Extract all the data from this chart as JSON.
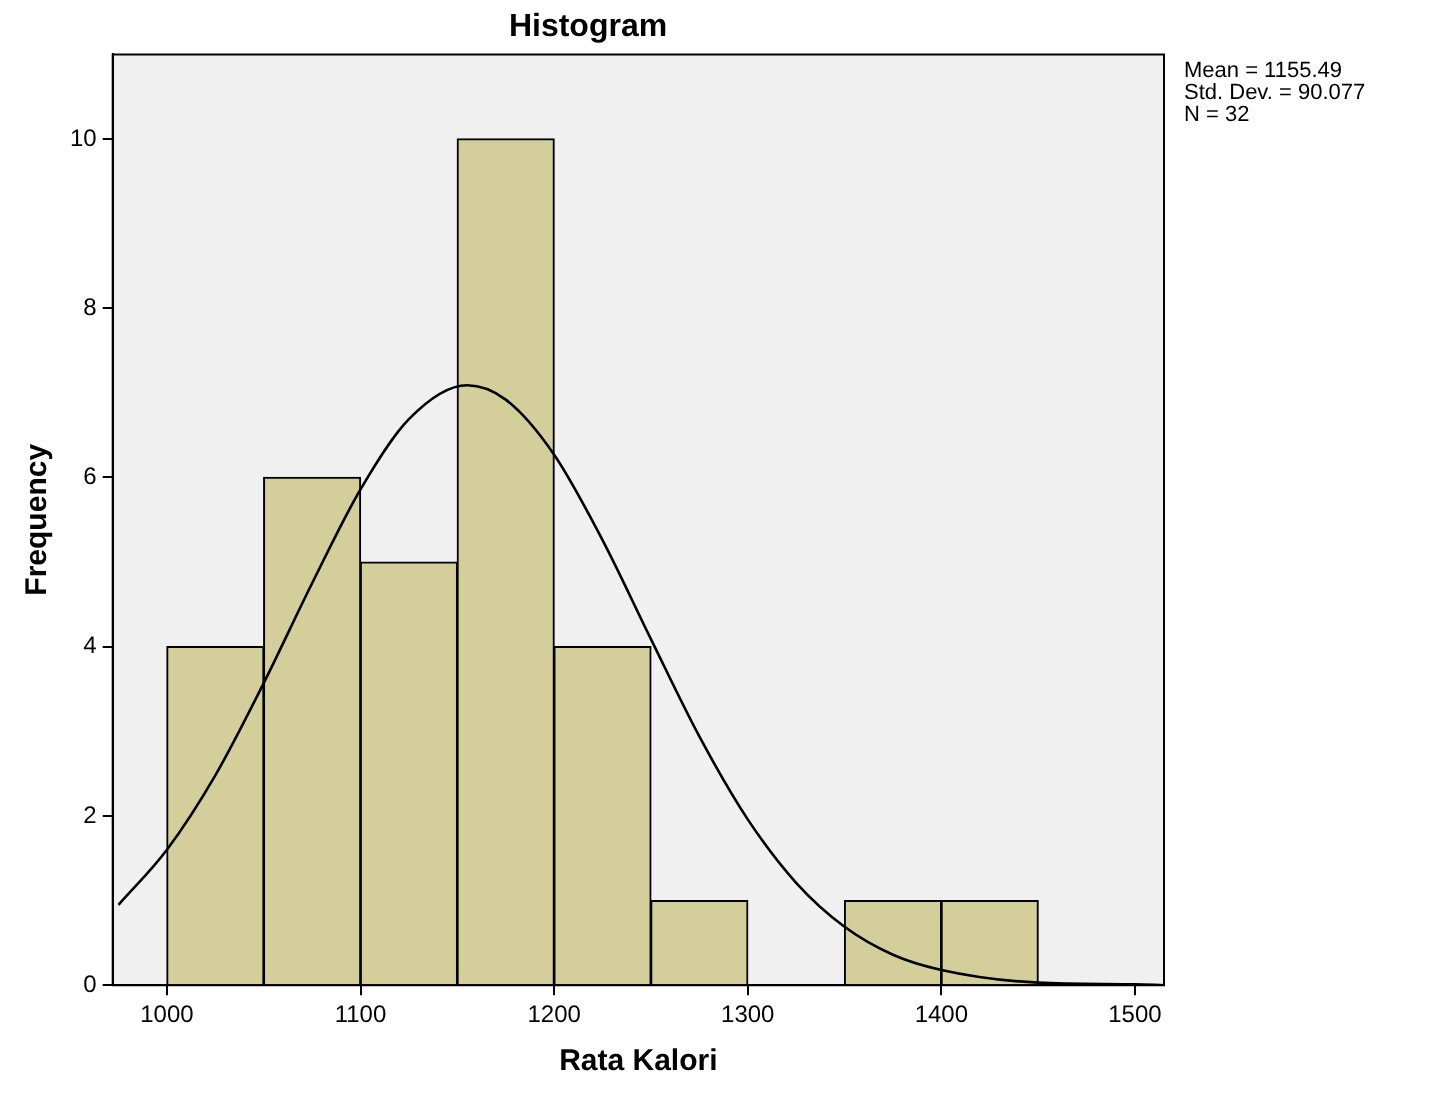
{
  "chart_data": {
    "type": "histogram",
    "title": "Histogram",
    "xlabel": "Rata Kalori",
    "ylabel": "Frequency",
    "bins": [
      1000,
      1050,
      1100,
      1150,
      1200,
      1250,
      1300,
      1350,
      1400,
      1450
    ],
    "values": [
      4,
      6,
      5,
      10,
      4,
      1,
      0,
      1,
      1
    ],
    "color": "#d3ce9a",
    "series": [
      {
        "type": "line",
        "color": "#000000",
        "x": [
          975,
          1000,
          1025,
          1050,
          1075,
          1100,
          1125,
          1155,
          1175,
          1200,
          1225,
          1250,
          1275,
          1300,
          1325,
          1350,
          1375,
          1400,
          1450,
          1500,
          1515
        ],
        "values": [
          0.95,
          1.6,
          2.48,
          3.57,
          4.75,
          5.86,
          6.69,
          7.09,
          6.92,
          6.27,
          5.26,
          4.09,
          2.94,
          1.96,
          1.21,
          0.69,
          0.36,
          0.18,
          0.03,
          0.01,
          0
        ]
      }
    ],
    "xlim": [
      972,
      1515
    ],
    "ylim": [
      0,
      11
    ],
    "xticks": [
      1000,
      1100,
      1200,
      1300,
      1400,
      1500
    ],
    "yticks": [
      0,
      2,
      4,
      6,
      8,
      10
    ],
    "grid": false,
    "legend": false,
    "annotations": [
      "Mean = 1155.49",
      "Std. Dev. = 90.077",
      "N = 32"
    ]
  }
}
